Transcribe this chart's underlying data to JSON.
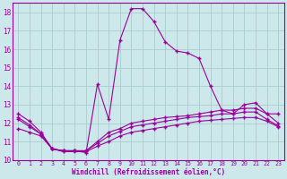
{
  "xlabel": "Windchill (Refroidissement éolien,°C)",
  "bg_color": "#cce8ea",
  "grid_color": "#aacccc",
  "line_color": "#990099",
  "xlim": [
    -0.5,
    23.5
  ],
  "ylim": [
    10,
    18.5
  ],
  "yticks": [
    10,
    11,
    12,
    13,
    14,
    15,
    16,
    17,
    18
  ],
  "xticks": [
    0,
    1,
    2,
    3,
    4,
    5,
    6,
    7,
    8,
    9,
    10,
    11,
    12,
    13,
    14,
    15,
    16,
    17,
    18,
    19,
    20,
    21,
    22,
    23
  ],
  "s1_x": [
    0,
    1,
    2,
    3,
    4,
    5,
    6,
    7,
    8,
    9,
    10,
    11,
    12,
    13,
    14,
    15,
    16,
    17,
    18,
    19,
    20,
    21,
    22,
    23
  ],
  "s1_y": [
    12.5,
    12.1,
    11.5,
    10.6,
    10.5,
    10.5,
    10.4,
    14.1,
    12.2,
    16.5,
    18.2,
    18.2,
    17.5,
    16.4,
    15.9,
    15.8,
    15.5,
    14.0,
    12.7,
    12.5,
    13.0,
    13.1,
    12.5,
    12.5
  ],
  "s2_x": [
    0,
    1,
    2,
    3,
    4,
    5,
    6,
    7,
    8,
    9,
    10,
    11,
    12,
    13,
    14,
    15,
    16,
    17,
    18,
    19,
    20,
    21,
    22,
    23
  ],
  "s2_y": [
    12.3,
    11.9,
    11.4,
    10.6,
    10.5,
    10.5,
    10.5,
    11.0,
    11.5,
    11.7,
    12.0,
    12.1,
    12.2,
    12.3,
    12.35,
    12.4,
    12.5,
    12.6,
    12.7,
    12.7,
    12.8,
    12.8,
    12.5,
    12.0
  ],
  "s3_x": [
    0,
    1,
    2,
    3,
    4,
    5,
    6,
    7,
    8,
    9,
    10,
    11,
    12,
    13,
    14,
    15,
    16,
    17,
    18,
    19,
    20,
    21,
    22,
    23
  ],
  "s3_y": [
    12.2,
    11.8,
    11.4,
    10.6,
    10.5,
    10.5,
    10.5,
    10.9,
    11.3,
    11.55,
    11.8,
    11.9,
    12.0,
    12.1,
    12.2,
    12.3,
    12.35,
    12.4,
    12.5,
    12.5,
    12.6,
    12.6,
    12.2,
    11.85
  ],
  "s4_x": [
    0,
    1,
    2,
    3,
    4,
    5,
    6,
    7,
    8,
    9,
    10,
    11,
    12,
    13,
    14,
    15,
    16,
    17,
    18,
    19,
    20,
    21,
    22,
    23
  ],
  "s4_y": [
    11.7,
    11.5,
    11.3,
    10.6,
    10.45,
    10.45,
    10.45,
    10.75,
    11.0,
    11.3,
    11.5,
    11.6,
    11.7,
    11.8,
    11.9,
    12.0,
    12.1,
    12.15,
    12.2,
    12.25,
    12.3,
    12.3,
    12.1,
    11.8
  ]
}
